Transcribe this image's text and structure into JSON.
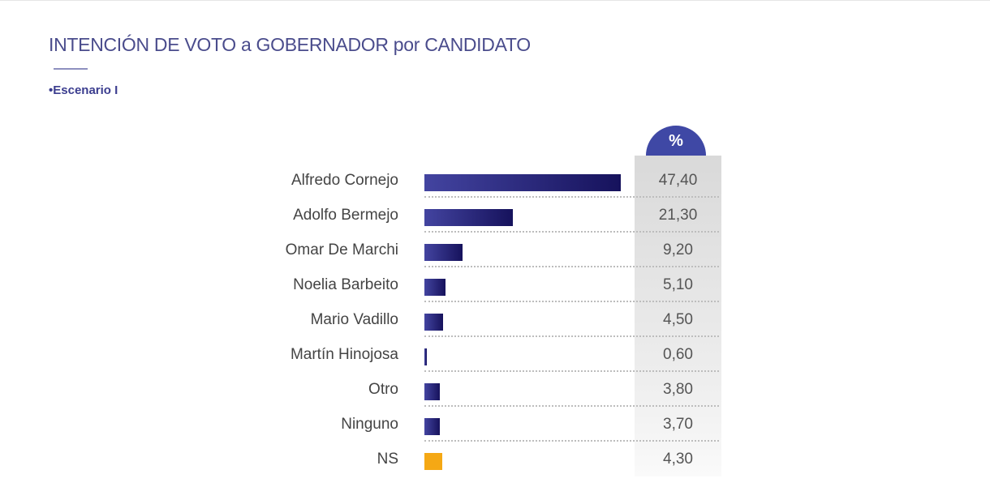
{
  "header": {
    "title": "INTENCIÓN DE VOTO a GOBERNADOR por CANDIDATO",
    "subtitle": "•Escenario I"
  },
  "chart_data": {
    "type": "bar",
    "orientation": "horizontal",
    "title": "INTENCIÓN DE VOTO a GOBERNADOR por CANDIDATO",
    "subtitle": "Escenario I",
    "value_header": "%",
    "categories": [
      "Alfredo Cornejo",
      "Adolfo Bermejo",
      "Omar De Marchi",
      "Noelia Barbeito",
      "Mario Vadillo",
      "Martín Hinojosa",
      "Otro",
      "Ninguno",
      "NS"
    ],
    "values": [
      47.4,
      21.3,
      9.2,
      5.1,
      4.5,
      0.6,
      3.8,
      3.7,
      4.3
    ],
    "labels": [
      "47,40",
      "21,30",
      "9,20",
      "5,10",
      "4,50",
      "0,60",
      "3,80",
      "3,70",
      "4,30"
    ],
    "colors": {
      "default": "#2b2a7e",
      "NS": "#f5a814"
    },
    "xlim": [
      0,
      50
    ],
    "grid": false
  }
}
